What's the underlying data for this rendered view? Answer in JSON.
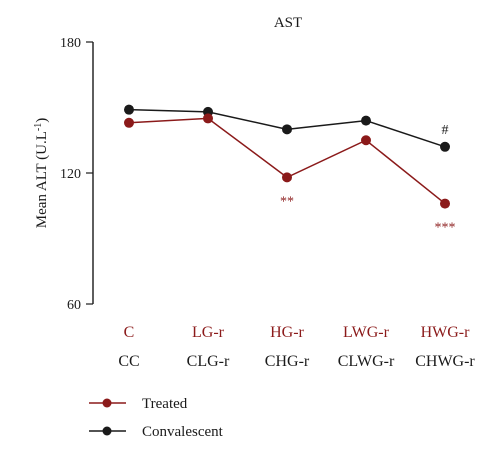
{
  "chart_data": {
    "type": "line",
    "title": "AST",
    "ylabel": "Mean ALT (U.L",
    "ylabel_sup": "-1",
    "ylabel_close": ")",
    "ylim": [
      60,
      180
    ],
    "yticks": [
      60,
      120,
      180
    ],
    "categories": [
      "C",
      "LG-r",
      "HG-r",
      "LWG-r",
      "HWG-r"
    ],
    "categories_secondary": [
      "CC",
      "CLG-r",
      "CHG-r",
      "CLWG-r",
      "CHWG-r"
    ],
    "series": [
      {
        "name": "Treated",
        "color": "#8b1a1a",
        "values": [
          143,
          145,
          118,
          135,
          106
        ],
        "annotations": [
          "",
          "",
          "**",
          "",
          "***"
        ]
      },
      {
        "name": "Convalescent",
        "color": "#1a1a1a",
        "values": [
          149,
          148,
          140,
          144,
          132
        ],
        "annotations": [
          "",
          "",
          "",
          "",
          "#"
        ]
      }
    ],
    "legend_position": "bottom-left",
    "grid": false
  }
}
